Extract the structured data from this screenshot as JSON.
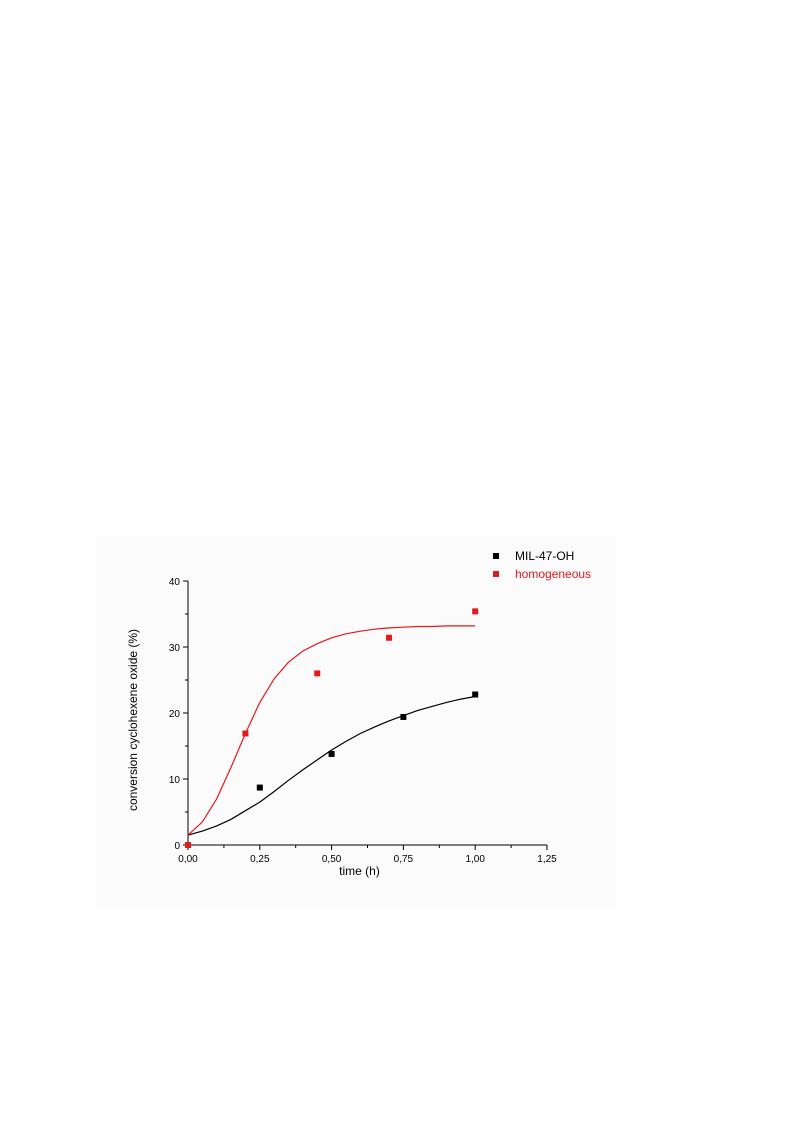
{
  "chart_data": {
    "type": "scatter",
    "title": "",
    "xlabel": "time (h)",
    "ylabel": "conversion cyclohexene oxide (%)",
    "xlim": [
      0,
      1.25
    ],
    "ylim": [
      0,
      40
    ],
    "x_ticks": [
      0,
      0.25,
      0.5,
      0.75,
      1.0,
      1.25
    ],
    "x_tick_labels": [
      "0,00",
      "0,25",
      "0,50",
      "0,75",
      "1,00",
      "1,25"
    ],
    "y_ticks": [
      0,
      10,
      20,
      30,
      40
    ],
    "y_tick_labels": [
      "0",
      "10",
      "20",
      "30",
      "40"
    ],
    "grid": false,
    "legend": "top-right",
    "series": [
      {
        "name": "MIL-47-OH",
        "color": "#000000",
        "x": [
          0,
          0.25,
          0.5,
          0.75,
          1.0
        ],
        "y": [
          0,
          8.7,
          13.8,
          19.4,
          22.8
        ],
        "fit_x": [
          0,
          0.05,
          0.1,
          0.15,
          0.2,
          0.25,
          0.3,
          0.35,
          0.4,
          0.45,
          0.5,
          0.55,
          0.6,
          0.65,
          0.7,
          0.75,
          0.8,
          0.85,
          0.9,
          0.95,
          1.0
        ],
        "fit_y": [
          1.5,
          2.1,
          2.9,
          3.9,
          5.2,
          6.5,
          8.1,
          9.8,
          11.4,
          12.9,
          14.4,
          15.7,
          16.9,
          17.9,
          18.8,
          19.6,
          20.4,
          21.0,
          21.6,
          22.1,
          22.5
        ]
      },
      {
        "name": "homogeneous",
        "color": "#e31a1c",
        "x": [
          0,
          0.2,
          0.45,
          0.7,
          1.0
        ],
        "y": [
          0,
          16.9,
          26.0,
          31.4,
          35.4
        ],
        "fit_x": [
          0,
          0.05,
          0.1,
          0.15,
          0.2,
          0.25,
          0.3,
          0.35,
          0.4,
          0.45,
          0.5,
          0.55,
          0.6,
          0.65,
          0.7,
          0.75,
          0.8,
          0.85,
          0.9,
          0.95,
          1.0
        ],
        "fit_y": [
          1.5,
          3.5,
          7.0,
          11.8,
          16.9,
          21.6,
          25.2,
          27.7,
          29.4,
          30.5,
          31.4,
          32.0,
          32.4,
          32.7,
          32.9,
          33.0,
          33.1,
          33.1,
          33.2,
          33.2,
          33.2
        ]
      }
    ]
  }
}
